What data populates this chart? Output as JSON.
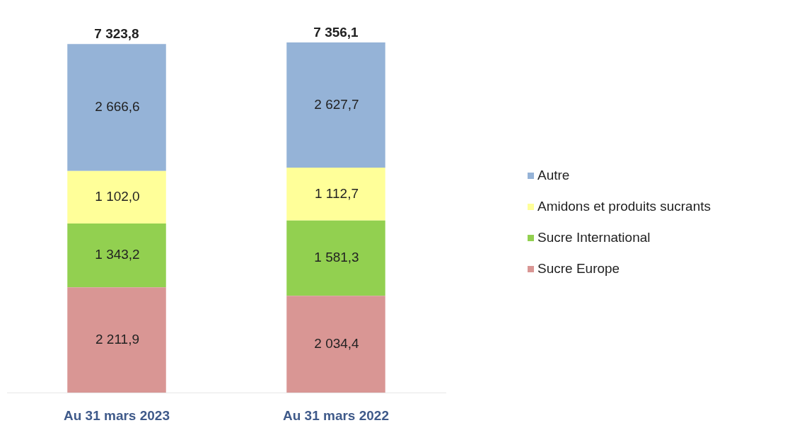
{
  "chart_data": {
    "type": "bar",
    "stacked": true,
    "data_labels": false,
    "legend": "right",
    "grid": false,
    "categories": [
      "Au 31 mars 2023",
      "Au 31 mars 2022"
    ],
    "series": [
      {
        "name": "Sucre Europe",
        "color": "#d99694",
        "values": [
          2211.9,
          2034.4
        ],
        "value_labels": [
          "2 211,9",
          "2 034,4"
        ]
      },
      {
        "name": "Sucre International",
        "color": "#92d050",
        "values": [
          1343.2,
          1581.3
        ],
        "value_labels": [
          "1 343,2",
          "1 581,3"
        ]
      },
      {
        "name": "Amidons et produits sucrants",
        "color": "#ffff99",
        "values": [
          1102.0,
          1112.7
        ],
        "value_labels": [
          "1 102,0",
          "1 112,7"
        ]
      },
      {
        "name": "Autre",
        "color": "#95b3d7",
        "values": [
          2666.6,
          2627.7
        ],
        "value_labels": [
          "2 666,6",
          "2 627,7"
        ]
      }
    ],
    "totals": [
      "7 323,8",
      "7 356,1"
    ]
  }
}
